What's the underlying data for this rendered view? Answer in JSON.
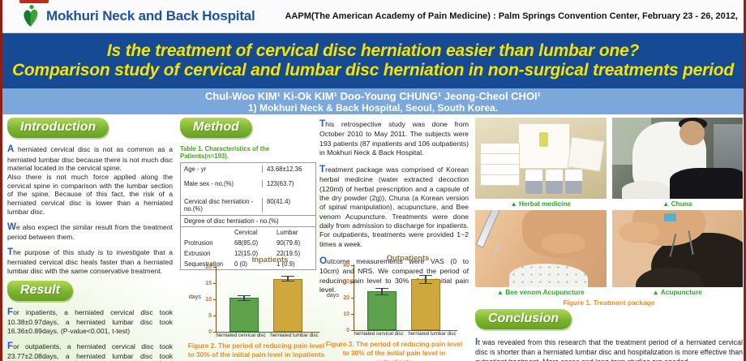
{
  "header": {
    "hospital_name": "Mokhuri Neck and Back Hospital",
    "conference": "AAPM(The American Academy of Pain Medicine) : Palm Springs Convention Center, February 23 - 26, 2012,"
  },
  "title": {
    "line1": "Is the treatment of cervical disc herniation easier than lumbar one?",
    "line2": "Comparison study of cervical and lumbar disc herniation in non-surgical treatments period"
  },
  "authors": {
    "names": "Chul-Woo KIM¹ Ki-Ok KIM¹  Doo-Young CHUNG¹ Jeong-Cheol CHOI¹",
    "affiliation": "1) Mokhuri Neck & Back Hospital, Seoul, South Korea."
  },
  "intro": {
    "heading": "Introduction",
    "paragraphs": [
      "A herniated cervical disc is not as common as a herniated lumbar disc because there is not much disc material located in the cervical spine.\nAlso there is not much force applied along the cervical spine in comparison with the lumbar section of the spine. Because of this fact, the risk of a herniated cervical disc is lower than a herniated lumbar disc.",
      "We also expect the similar result from the treatment period between them.",
      "The purpose of this study is to investigate that a herniated cervical disc heals faster than a herniated lumbar disc with the same conservative treatment."
    ]
  },
  "result": {
    "heading": "Result",
    "paragraphs": [
      "For inpatients, a herniated cervical disc took 10.38±0.97days, a herniated lumbar disc took 16.36±0.89days. (P-value<0.001, t-test)",
      "For outpatients, a herniated cervical disc took 23.77±2.08days,  a herniated lumbar disc took 31.41±2.69days. (P-value=0.025, t-test)"
    ]
  },
  "method": {
    "heading": "Method",
    "table_title": "Table 1. Characteristics of the Patients(n=193).",
    "table": {
      "rows": [
        {
          "label": "Age - yr",
          "value": "43.68±12.36"
        },
        {
          "label": "Male sex - no.(%)",
          "value": "123(63.7)"
        },
        {
          "label": "Cervical disc herniation - no.(%)",
          "value": "80(41.4)"
        }
      ],
      "subheader": "Degree of disc herniation - no.(%)",
      "columns": [
        "",
        "Cervical",
        "Lumbar"
      ],
      "degree_rows": [
        {
          "label": "Protrusion",
          "cervical": "68(85.0)",
          "lumbar": "90(79.6)"
        },
        {
          "label": "Extrusion",
          "cervical": "12(15.0)",
          "lumbar": "22(19.5)"
        },
        {
          "label": "Sequestration",
          "cervical": "0 (0)",
          "lumbar": "1 (0.9)"
        }
      ]
    }
  },
  "study": {
    "paragraphs": [
      "This retrospective study was done from October 2010 to May 2011. The subjects were 193 patients (87 inpatients and 106 outpatients) in Mokhuri Neck & Back Hospital.",
      "Treatment package was comprised of Korean herbal medicine (water extracted decoction (120ml) of herbal prescription and a capsule of the dry powder (2g)), Chuna (a Korean version of spinal manipulation), acupuncture, and Bee venom Acupuncture. Treatments were done daily from admission to discharge for inpatients. For outpatients, treatments were provided 1~2 times a week.",
      "Outcome measurements were VAS (0 to 10cm) and NRS. We compared the period of reducing pain level to 30% of the initial pain level."
    ]
  },
  "chart_data": [
    {
      "type": "bar",
      "title": "Inpatients",
      "ylabel": "days",
      "ylim": [
        0,
        20
      ],
      "yticks": [
        0,
        5,
        10,
        15,
        20
      ],
      "categories": [
        "herniated cervical disc",
        "herniated lumbar disc"
      ],
      "values": [
        10.38,
        16.36
      ],
      "errors": [
        0.97,
        0.89
      ],
      "bar_colors": [
        "#5ea24d",
        "#d0a73d"
      ],
      "bar_border_colors": [
        "#33772e",
        "#9c7d22"
      ],
      "grid": false,
      "legend": false,
      "caption": "Figure 2. The period of reducing pain level\nto 30% of the initial pain level  in inpatients"
    },
    {
      "type": "bar",
      "title": "Outpatients",
      "ylabel": "days",
      "ylim": [
        0,
        40
      ],
      "yticks": [
        0,
        10,
        20,
        30,
        40
      ],
      "categories": [
        "herniated cervical disc",
        "herniated lumbar disc"
      ],
      "values": [
        23.77,
        31.41
      ],
      "errors": [
        2.08,
        2.69
      ],
      "bar_colors": [
        "#5ea24d",
        "#d0a73d"
      ],
      "bar_border_colors": [
        "#33772e",
        "#9c7d22"
      ],
      "grid": false,
      "legend": false,
      "caption": "Figure 3. The period of reducing pain level\nto 30% of the initial pain level  in outpatients"
    }
  ],
  "figures": {
    "photos": [
      {
        "caption": "▲ Herbal medicine"
      },
      {
        "caption": "▲ Chuna"
      },
      {
        "caption": "▲ Bee venom Acupuncture"
      },
      {
        "caption": "▲ Acupuncture"
      }
    ],
    "figure1_caption": "Figure 1. Treatment package"
  },
  "conclusion": {
    "heading": "Conclusion",
    "text": "It was revealed from this research that the treatment period of a herniated cervical disc is shorter than a herniated lumbar disc and hospitalization is more effective than outpatient treatment. More cases and long-term studies are needed."
  },
  "colors": {
    "banner_blue": "#164a94",
    "author_band_blue": "#7ba7db",
    "title_yellow": "#f5e300",
    "section_pill_green": "#7cb32e",
    "table_title_green": "#4ba01e",
    "photo_caption_green": "#2ea52c",
    "figure_caption_orange": "#ef8c1b",
    "bar_green": "#5ea24d",
    "bar_gold": "#d0a73d",
    "axis_brown": "#7c4a24",
    "logo_blue": "#1d52a2",
    "edge_red": "#8e1f14"
  }
}
